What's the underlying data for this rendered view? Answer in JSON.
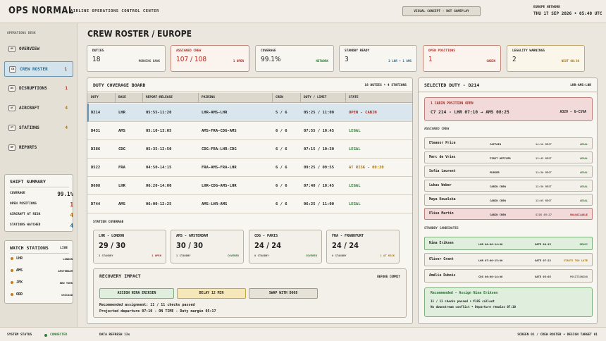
{
  "header": {
    "brand": "OPS NORMAL",
    "subtitle": "AIRLINE OPERATIONS CONTROL CENTER",
    "concept_badge": "VISUAL CONCEPT - NOT GAMEPLAY",
    "network_label": "EUROPE NETWORK",
    "datetime": "THU 17 SEP 2026 • 05:40 UTC"
  },
  "sidebar": {
    "section_label": "OPERATIONS DESK",
    "items": [
      {
        "code": "OV",
        "label": "OVERVIEW",
        "count": ""
      },
      {
        "code": "CR",
        "label": "CREW ROSTER",
        "count": "1"
      },
      {
        "code": "DS",
        "label": "DISRUPTIONS",
        "count": "1"
      },
      {
        "code": "AC",
        "label": "AIRCRAFT",
        "count": "4"
      },
      {
        "code": "ST",
        "label": "STATIONS",
        "count": "4"
      },
      {
        "code": "RP",
        "label": "REPORTS",
        "count": ""
      }
    ],
    "shift_summary": {
      "title": "SHIFT SUMMARY",
      "rows": [
        {
          "label": "COVERAGE",
          "value": "99.1%"
        },
        {
          "label": "OPEN POSITIONS",
          "value": "1"
        },
        {
          "label": "AIRCRAFT AT RISK",
          "value": "4"
        },
        {
          "label": "STATIONS WATCHED",
          "value": "4"
        }
      ]
    },
    "watch_stations": {
      "title": "WATCH STATIONS",
      "status": "LIVE",
      "items": [
        {
          "code": "LHR",
          "city": "LONDON"
        },
        {
          "code": "AMS",
          "city": "AMSTERDAM"
        },
        {
          "code": "JFK",
          "city": "NEW YORK"
        },
        {
          "code": "ORD",
          "city": "CHICAGO"
        }
      ]
    }
  },
  "page": {
    "title": "CREW ROSTER / EUROPE"
  },
  "kpis": [
    {
      "label": "DUTIES",
      "value": "18",
      "note": "MORNING BANK"
    },
    {
      "label": "ASSIGNED CREW",
      "value": "107 / 108",
      "note": "1 OPEN"
    },
    {
      "label": "COVERAGE",
      "value": "99.1%",
      "note": "NETWORK"
    },
    {
      "label": "STANDBY READY",
      "value": "3",
      "note": "2 LHR • 1 AMS"
    },
    {
      "label": "OPEN POSITIONS",
      "value": "1",
      "note": "CABIN"
    },
    {
      "label": "LEGALITY WARNINGS",
      "value": "2",
      "note": "NEXT 00:30"
    }
  ],
  "board": {
    "title": "DUTY COVERAGE BOARD",
    "meta": "18 DUTIES • 4 STATIONS",
    "columns": [
      "DUTY",
      "BASE",
      "REPORT-RELEASE",
      "PAIRING",
      "CREW",
      "DUTY / LIMIT",
      "STATE"
    ],
    "rows": [
      {
        "duty": "D214",
        "base": "LHR",
        "report": "05:55-11:20",
        "pairing": "LHR-AMS-LHR",
        "crew": "5 / 6",
        "limit": "05:25 / 11:00",
        "state": "OPEN - CABIN"
      },
      {
        "duty": "D431",
        "base": "AMS",
        "report": "05:10-13:05",
        "pairing": "AMS-FRA-CDG-AMS",
        "crew": "6 / 6",
        "limit": "07:55 / 10:45",
        "state": "LEGAL"
      },
      {
        "duty": "D386",
        "base": "CDG",
        "report": "05:35-12:50",
        "pairing": "CDG-FRA-LHR-CDG",
        "crew": "6 / 6",
        "limit": "07:15 / 10:30",
        "state": "LEGAL"
      },
      {
        "duty": "D522",
        "base": "FRA",
        "report": "04:50-14:15",
        "pairing": "FRA-AMS-FRA-LHR",
        "crew": "6 / 6",
        "limit": "09:25 / 09:55",
        "state": "AT RISK - 00:30"
      },
      {
        "duty": "D608",
        "base": "LHR",
        "report": "06:20-14:00",
        "pairing": "LHR-CDG-AMS-LHR",
        "crew": "6 / 6",
        "limit": "07:40 / 10:45",
        "state": "LEGAL"
      },
      {
        "duty": "D744",
        "base": "AMS",
        "report": "06:00-12:25",
        "pairing": "AMS-LHR-AMS",
        "crew": "6 / 6",
        "limit": "06:25 / 11:00",
        "state": "LEGAL"
      }
    ],
    "station_coverage_title": "STATION COVERAGE",
    "stations": [
      {
        "name": "LHR - LONDON",
        "value": "29 / 30",
        "detail": "2 STANDBY",
        "status": "1 OPEN"
      },
      {
        "name": "AMS - AMSTERDAM",
        "value": "30 / 30",
        "detail": "1 STANDBY",
        "status": "COVERED"
      },
      {
        "name": "CDG - PARIS",
        "value": "24 / 24",
        "detail": "0 STANDBY",
        "status": "COVERED"
      },
      {
        "name": "FRA - FRANKFURT",
        "value": "24 / 24",
        "detail": "0 STANDBY",
        "status": "1 AT RISK"
      }
    ],
    "recovery": {
      "title": "RECOVERY IMPACT",
      "meta": "BEFORE COMMIT",
      "buttons": [
        "ASSIGN NINA ERIKSEN",
        "DELAY 12 MIN",
        "SWAP WITH D608"
      ],
      "line1": "Recommended assignment: 11 / 11 checks passed",
      "line2": "Projected departure 07:10 - ON TIME - Duty margin 05:17"
    }
  },
  "detail": {
    "title": "SELECTED DUTY - D214",
    "route": "LHR-AMS-LHR",
    "alert_title": "1 CABIN POSITION OPEN",
    "alert_flights": "C7 214 - LHR 07:10 → AMS 08:25",
    "alert_aircraft": "A320 - G-CSVA",
    "assigned_title": "ASSIGNED CREW",
    "crew": [
      {
        "name": "Eleanor Price",
        "role": "CAPTAIN",
        "rest": "14:10 REST",
        "status": "LEGAL"
      },
      {
        "name": "Marc de Vries",
        "role": "FIRST OFFICER",
        "rest": "13:45 REST",
        "status": "LEGAL"
      },
      {
        "name": "Sofia Laurent",
        "role": "PURSER",
        "rest": "13:30 REST",
        "status": "LEGAL"
      },
      {
        "name": "Lukas Weber",
        "role": "CABIN CREW",
        "rest": "12:50 REST",
        "status": "LEGAL"
      },
      {
        "name": "Maya Kowalska",
        "role": "CABIN CREW",
        "rest": "13:05 REST",
        "status": "LEGAL"
      },
      {
        "name": "Elise Martin",
        "role": "CABIN CREW",
        "rest": "SICK 05:27",
        "status": "UNAVAILABLE"
      }
    ],
    "candidates_title": "STANDBY CANDIDATES",
    "candidates": [
      {
        "name": "Nina Eriksen",
        "window": "LHR 06:00-14:00",
        "gate": "GATE 00:15",
        "status": "READY"
      },
      {
        "name": "Oliver Grant",
        "window": "LHR 07:00-15:00",
        "gate": "GATE 07:22",
        "status": "STARTS TOO LATE"
      },
      {
        "name": "Amélie Dubois",
        "window": "CDG 06:00-14:00",
        "gate": "GATE 05:05",
        "status": "POSITIONING"
      }
    ],
    "recommendation": {
      "title": "Recommended - Assign Nina Eriksen",
      "line1": "11 / 11 checks passed • €185 callout",
      "line2": "No downstream conflict • Departure remains 07:10"
    }
  },
  "footer": {
    "status_label": "SYSTEM STATUS",
    "status_value": "CONNECTED",
    "refresh": "DATA REFRESH 13s",
    "screen": "SCREEN 01 / CREW ROSTER • DESIGN TARGET 01"
  },
  "colors": {
    "legal": "#2d7d36",
    "open": "#b0291f",
    "at_risk": "#a87310",
    "selected": "#6d95ae"
  }
}
